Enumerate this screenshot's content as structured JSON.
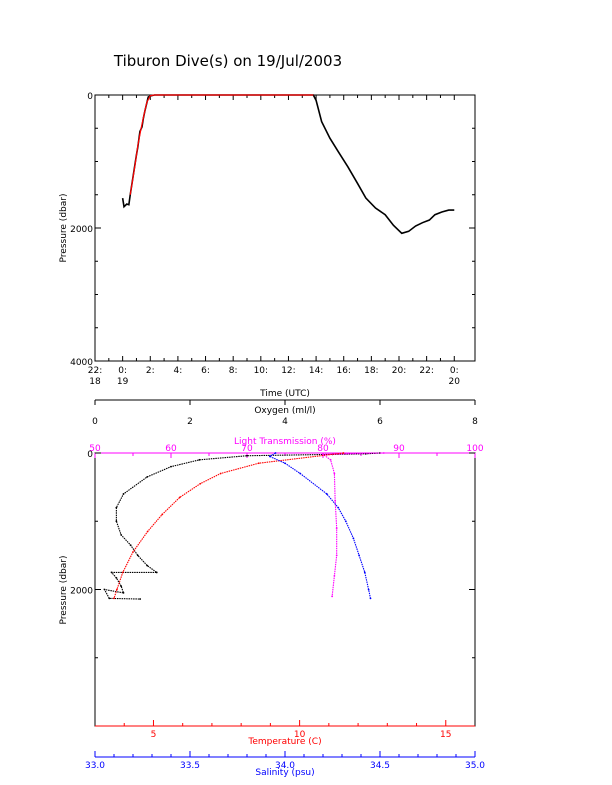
{
  "chart_data": [
    {
      "type": "line",
      "title": "Tiburon Dive(s) on 19/Jul/2003",
      "xlabel": "Time (UTC)",
      "ylabel": "Pressure (dbar)",
      "x_unit": "hours since 19/Jul/2003 00:00 UTC",
      "ylim": [
        4000,
        0
      ],
      "y_ticks": [
        "0",
        "2000",
        "4000"
      ],
      "x_ticks": [
        {
          "x": -2,
          "label": "22:",
          "sub": "18"
        },
        {
          "x": 0,
          "label": "0:",
          "sub": "19"
        },
        {
          "x": 2,
          "label": "2:",
          "sub": ""
        },
        {
          "x": 4,
          "label": "4:",
          "sub": ""
        },
        {
          "x": 6,
          "label": "6:",
          "sub": ""
        },
        {
          "x": 8,
          "label": "8:",
          "sub": ""
        },
        {
          "x": 10,
          "label": "10:",
          "sub": ""
        },
        {
          "x": 12,
          "label": "12:",
          "sub": ""
        },
        {
          "x": 14,
          "label": "14:",
          "sub": ""
        },
        {
          "x": 16,
          "label": "16:",
          "sub": ""
        },
        {
          "x": 18,
          "label": "18:",
          "sub": ""
        },
        {
          "x": 20,
          "label": "20:",
          "sub": ""
        },
        {
          "x": 22,
          "label": "22:",
          "sub": ""
        },
        {
          "x": 24,
          "label": "0:",
          "sub": "20"
        }
      ],
      "xlim": [
        -2,
        25.5
      ],
      "series": [
        {
          "color": "#000000",
          "points": [
            [
              0.0,
              1550
            ],
            [
              0.1,
              1680
            ],
            [
              0.3,
              1640
            ],
            [
              0.45,
              1650
            ],
            [
              0.55,
              1500
            ],
            [
              0.7,
              1300
            ],
            [
              0.85,
              1100
            ],
            [
              1.0,
              900
            ],
            [
              1.1,
              780
            ],
            [
              1.25,
              550
            ],
            [
              1.4,
              480
            ],
            [
              1.5,
              350
            ],
            [
              1.6,
              250
            ],
            [
              1.75,
              120
            ],
            [
              1.85,
              30
            ],
            [
              2.0,
              15
            ],
            [
              2.3,
              0
            ],
            [
              13.8,
              0
            ],
            [
              14.0,
              80
            ],
            [
              14.4,
              400
            ],
            [
              15.0,
              650
            ],
            [
              15.6,
              850
            ],
            [
              16.3,
              1080
            ],
            [
              17.0,
              1330
            ],
            [
              17.6,
              1550
            ],
            [
              18.3,
              1700
            ],
            [
              19.0,
              1800
            ],
            [
              19.6,
              1960
            ],
            [
              20.2,
              2080
            ],
            [
              20.7,
              2050
            ],
            [
              21.2,
              1970
            ],
            [
              21.7,
              1920
            ],
            [
              22.2,
              1880
            ],
            [
              22.6,
              1800
            ],
            [
              23.1,
              1760
            ],
            [
              23.6,
              1730
            ],
            [
              24.0,
              1730
            ]
          ]
        },
        {
          "color": "#ff0000",
          "points": [
            [
              0.55,
              1500
            ],
            [
              0.9,
              1050
            ],
            [
              1.1,
              760
            ],
            [
              1.3,
              540
            ],
            [
              1.5,
              340
            ],
            [
              1.75,
              110
            ],
            [
              2.0,
              10
            ],
            [
              2.3,
              0
            ],
            [
              13.8,
              0
            ]
          ]
        }
      ]
    },
    {
      "type": "scatter",
      "ylabel": "Pressure (dbar)",
      "ylim": [
        4000,
        0
      ],
      "y_ticks": [
        "0",
        "2000"
      ],
      "axes": {
        "oxygen": {
          "label": "Oxygen (ml/l)",
          "range": [
            0,
            8
          ],
          "ticks": [
            "0",
            "2",
            "4",
            "6",
            "8"
          ],
          "color": "#000000"
        },
        "light_transmission": {
          "label": "Light Transmission (%)",
          "range": [
            50,
            100
          ],
          "ticks": [
            "50",
            "60",
            "70",
            "80",
            "90",
            "100"
          ],
          "color": "#ff00ff"
        },
        "temperature": {
          "label": "Temperature (C)",
          "range": [
            3.0,
            16.0
          ],
          "ticks": [
            "5",
            "10",
            "15"
          ],
          "color": "#ff0000"
        },
        "salinity": {
          "label": "Salinity (psu)",
          "range": [
            33.0,
            35.0
          ],
          "ticks": [
            "33.0",
            "33.5",
            "34.0",
            "34.5",
            "35.0"
          ],
          "color": "#0000ff"
        }
      },
      "series": [
        {
          "axis": "oxygen",
          "color": "#000000",
          "points": [
            [
              6.0,
              0
            ],
            [
              5.7,
              12
            ],
            [
              5.0,
              20
            ],
            [
              3.2,
              40
            ],
            [
              2.2,
              100
            ],
            [
              1.6,
              200
            ],
            [
              1.1,
              350
            ],
            [
              0.6,
              600
            ],
            [
              0.45,
              800
            ],
            [
              0.45,
              1000
            ],
            [
              0.55,
              1200
            ],
            [
              0.75,
              1350
            ],
            [
              0.9,
              1500
            ],
            [
              1.1,
              1650
            ],
            [
              1.3,
              1750
            ],
            [
              0.35,
              1750
            ],
            [
              0.45,
              1830
            ],
            [
              0.55,
              1950
            ],
            [
              0.6,
              2050
            ],
            [
              0.2,
              2000
            ],
            [
              0.3,
              2130
            ],
            [
              0.95,
              2140
            ]
          ]
        },
        {
          "axis": "light_transmission",
          "color": "#ff00ff",
          "points": [
            [
              88,
              0
            ],
            [
              80,
              20
            ],
            [
              81,
              100
            ],
            [
              81.5,
              300
            ],
            [
              81.6,
              700
            ],
            [
              81.8,
              1100
            ],
            [
              81.8,
              1500
            ],
            [
              81.5,
              1800
            ],
            [
              81.2,
              2100
            ]
          ]
        },
        {
          "axis": "temperature",
          "color": "#ff0000",
          "points": [
            [
              11.5,
              0
            ],
            [
              8.6,
              150
            ],
            [
              7.3,
              300
            ],
            [
              6.6,
              450
            ],
            [
              5.9,
              650
            ],
            [
              5.3,
              900
            ],
            [
              4.8,
              1150
            ],
            [
              4.3,
              1450
            ],
            [
              3.95,
              1750
            ],
            [
              3.75,
              2000
            ],
            [
              3.65,
              2130
            ]
          ]
        },
        {
          "axis": "salinity",
          "color": "#0000ff",
          "points": [
            [
              33.95,
              0
            ],
            [
              33.92,
              50
            ],
            [
              34.0,
              150
            ],
            [
              34.08,
              300
            ],
            [
              34.22,
              600
            ],
            [
              34.28,
              800
            ],
            [
              34.32,
              1000
            ],
            [
              34.36,
              1250
            ],
            [
              34.39,
              1500
            ],
            [
              34.42,
              1750
            ],
            [
              34.44,
              2000
            ],
            [
              34.45,
              2130
            ]
          ]
        }
      ]
    }
  ]
}
